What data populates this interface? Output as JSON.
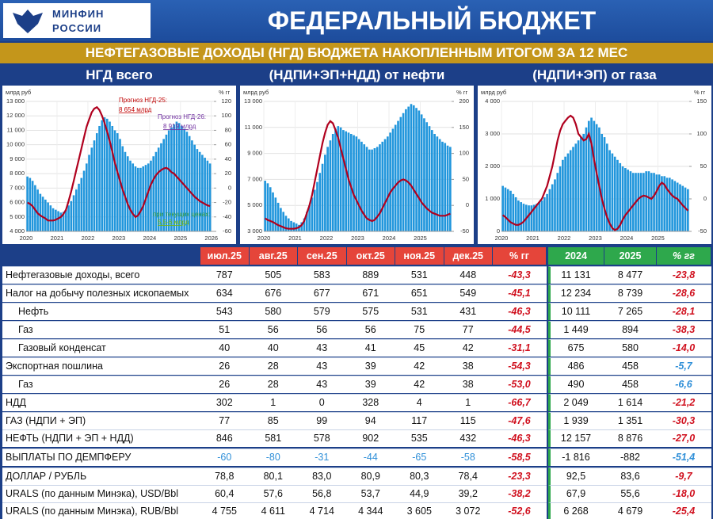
{
  "header": {
    "logo": [
      "МИНФИН",
      "РОССИИ"
    ],
    "title": "ФЕДЕРАЛЬНЫЙ БЮДЖЕТ",
    "subtitle": "НЕФТЕГАЗОВЫЕ ДОХОДЫ (НГД) БЮДЖЕТА НАКОПЛЕННЫМ ИТОГОМ ЗА 12 МЕС"
  },
  "chart_data": [
    {
      "type": "bar_line",
      "title": "НГД всего",
      "y_label": "млрд руб",
      "y2_label": "% гг",
      "categories": [
        "2020",
        null,
        null,
        null,
        null,
        null,
        null,
        null,
        null,
        null,
        null,
        null,
        "2021",
        null,
        null,
        null,
        null,
        null,
        null,
        null,
        null,
        null,
        null,
        null,
        "2022",
        null,
        null,
        null,
        null,
        null,
        null,
        null,
        null,
        null,
        null,
        null,
        "2023",
        null,
        null,
        null,
        null,
        null,
        null,
        null,
        null,
        null,
        null,
        null,
        "2024",
        null,
        null,
        null,
        null,
        null,
        null,
        null,
        null,
        null,
        null,
        null,
        "2025",
        null,
        null,
        null,
        null,
        null,
        null,
        null,
        null,
        null,
        null,
        null,
        "2026"
      ],
      "series": [
        {
          "color": "#2196dc",
          "values": [
            7800,
            7700,
            7500,
            7200,
            6900,
            6600,
            6400,
            6200,
            6000,
            5800,
            5600,
            5500,
            5400,
            5300,
            5350,
            5500,
            5800,
            6100,
            6500,
            6900,
            7300,
            7700,
            8200,
            8700,
            9300,
            9800,
            10300,
            10800,
            11300,
            11700,
            11900,
            11800,
            11600,
            11300,
            11000,
            10800,
            10400,
            9900,
            9500,
            9200,
            8900,
            8700,
            8500,
            8400,
            8400,
            8500,
            8600,
            8700,
            8900,
            9200,
            9500,
            9800,
            10100,
            10400,
            10700,
            11000,
            11200,
            11400,
            11600,
            11500,
            11300,
            11100,
            10900,
            10600,
            10300,
            10000,
            9700,
            9500,
            9300,
            9100,
            8900,
            8700,
            null
          ]
        },
        {
          "color": "#b0001e",
          "axis": "y2",
          "values": [
            -20,
            -22,
            -25,
            -30,
            -35,
            -38,
            -40,
            -42,
            -45,
            -45,
            -45,
            -44,
            -42,
            -40,
            -36,
            -30,
            -18,
            -5,
            10,
            25,
            40,
            55,
            70,
            85,
            95,
            105,
            110,
            112,
            108,
            100,
            90,
            78,
            65,
            50,
            35,
            22,
            10,
            -2,
            -12,
            -22,
            -30,
            -36,
            -40,
            -38,
            -32,
            -25,
            -15,
            -5,
            5,
            12,
            18,
            22,
            25,
            27,
            28,
            26,
            22,
            20,
            16,
            12,
            8,
            4,
            0,
            -4,
            -8,
            -12,
            -15,
            -18,
            -20,
            -22,
            -24,
            -25,
            null
          ]
        }
      ],
      "ylim": [
        4000,
        13000
      ],
      "yticks": [
        {
          "value": 4000,
          "label": "4 000"
        },
        {
          "value": 5000,
          "label": "5 000"
        },
        {
          "value": 6000,
          "label": "6 000"
        },
        {
          "value": 7000,
          "label": "7 000"
        },
        {
          "value": 8000,
          "label": "8 000"
        },
        {
          "value": 9000,
          "label": "9 000"
        },
        {
          "value": 10000,
          "label": "10 000"
        },
        {
          "value": 11000,
          "label": "11 000"
        },
        {
          "value": 12000,
          "label": "12 000"
        },
        {
          "value": 13000,
          "label": "13 000"
        }
      ],
      "y2lim": [
        -60,
        120
      ],
      "y2ticks": [
        -60,
        -40,
        -20,
        0,
        20,
        40,
        60,
        80,
        100,
        120
      ],
      "grid": true,
      "annotations": [
        {
          "text": "Прогноз НГД-25:",
          "color": "#c00000"
        },
        {
          "text": "8 654 млрд",
          "color": "#c00000"
        },
        {
          "text": "Прогноз НГД-26:",
          "color": "#7030a0"
        },
        {
          "text": "8 919 млрд",
          "color": "#7030a0"
        },
        {
          "text": "при текущих ценах:",
          "color": "#2e9a3a"
        },
        {
          "text": "5,5-6 млрд",
          "color": "#7ab800"
        }
      ]
    },
    {
      "type": "bar_line",
      "title": "(НДПИ+ЭП+НДД) от нефти",
      "y_label": "млрд руб",
      "y2_label": "% гг",
      "categories": [
        "2020",
        null,
        null,
        null,
        null,
        null,
        null,
        null,
        null,
        null,
        null,
        null,
        "2021",
        null,
        null,
        null,
        null,
        null,
        null,
        null,
        null,
        null,
        null,
        null,
        "2022",
        null,
        null,
        null,
        null,
        null,
        null,
        null,
        null,
        null,
        null,
        null,
        "2023",
        null,
        null,
        null,
        null,
        null,
        null,
        null,
        null,
        null,
        null,
        null,
        "2024",
        null,
        null,
        null,
        null,
        null,
        null,
        null,
        null,
        null,
        null,
        null,
        "2025",
        null,
        null,
        null,
        null,
        null,
        null,
        null,
        null,
        null,
        null,
        null
      ],
      "series": [
        {
          "color": "#2196dc",
          "values": [
            6900,
            6700,
            6400,
            6000,
            5600,
            5200,
            4800,
            4500,
            4200,
            4000,
            3800,
            3700,
            3600,
            3500,
            3700,
            4000,
            4500,
            5000,
            5600,
            6200,
            6800,
            7500,
            8200,
            8900,
            9500,
            10000,
            10500,
            10900,
            11100,
            11000,
            10800,
            10700,
            10600,
            10500,
            10400,
            10300,
            10100,
            9900,
            9700,
            9500,
            9300,
            9300,
            9400,
            9500,
            9700,
            9900,
            10100,
            10300,
            10600,
            10900,
            11200,
            11500,
            11800,
            12100,
            12400,
            12600,
            12800,
            12700,
            12500,
            12300,
            12000,
            11700,
            11400,
            11100,
            10800,
            10500,
            10300,
            10100,
            9900,
            9800,
            9600,
            9500
          ]
        },
        {
          "color": "#b0001e",
          "axis": "y2",
          "values": [
            -25,
            -28,
            -30,
            -32,
            -35,
            -38,
            -40,
            -42,
            -44,
            -45,
            -45,
            -45,
            -44,
            -42,
            -38,
            -30,
            -15,
            0,
            20,
            45,
            70,
            95,
            120,
            140,
            155,
            162,
            158,
            145,
            130,
            110,
            90,
            70,
            50,
            35,
            20,
            10,
            0,
            -10,
            -18,
            -25,
            -28,
            -30,
            -28,
            -22,
            -15,
            -5,
            5,
            15,
            25,
            32,
            38,
            44,
            48,
            50,
            48,
            44,
            38,
            30,
            22,
            14,
            6,
            0,
            -6,
            -10,
            -14,
            -16,
            -18,
            -20,
            -20,
            -20,
            -18,
            -16
          ]
        }
      ],
      "ylim": [
        3000,
        13000
      ],
      "yticks": [
        {
          "value": 3000,
          "label": "3 000"
        },
        {
          "value": 5000,
          "label": "5 000"
        },
        {
          "value": 7000,
          "label": "7 000"
        },
        {
          "value": 9000,
          "label": "9 000"
        },
        {
          "value": 11000,
          "label": "11 000"
        },
        {
          "value": 13000,
          "label": "13 000"
        }
      ],
      "y2lim": [
        -50,
        200
      ],
      "y2ticks": [
        -50,
        0,
        50,
        100,
        150,
        200
      ],
      "grid": true
    },
    {
      "type": "bar_line",
      "title": "(НДПИ+ЭП) от газа",
      "y_label": "млрд руб",
      "y2_label": "% гг",
      "categories": [
        "2020",
        null,
        null,
        null,
        null,
        null,
        null,
        null,
        null,
        null,
        null,
        null,
        "2021",
        null,
        null,
        null,
        null,
        null,
        null,
        null,
        null,
        null,
        null,
        null,
        "2022",
        null,
        null,
        null,
        null,
        null,
        null,
        null,
        null,
        null,
        null,
        null,
        "2023",
        null,
        null,
        null,
        null,
        null,
        null,
        null,
        null,
        null,
        null,
        null,
        "2024",
        null,
        null,
        null,
        null,
        null,
        null,
        null,
        null,
        null,
        null,
        null,
        "2025",
        null,
        null,
        null,
        null,
        null,
        null,
        null,
        null,
        null,
        null,
        null
      ],
      "series": [
        {
          "color": "#2196dc",
          "values": [
            1400,
            1350,
            1300,
            1250,
            1150,
            1050,
            950,
            900,
            850,
            820,
            800,
            800,
            820,
            850,
            900,
            950,
            1050,
            1150,
            1300,
            1450,
            1600,
            1800,
            2000,
            2200,
            2300,
            2400,
            2500,
            2600,
            2700,
            2800,
            2900,
            3000,
            3200,
            3400,
            3500,
            3400,
            3300,
            3200,
            3000,
            2900,
            2700,
            2500,
            2400,
            2300,
            2200,
            2100,
            2000,
            1950,
            1900,
            1850,
            1800,
            1800,
            1800,
            1800,
            1800,
            1850,
            1850,
            1800,
            1800,
            1750,
            1750,
            1700,
            1700,
            1650,
            1650,
            1600,
            1550,
            1500,
            1450,
            1400,
            1350,
            1300
          ]
        },
        {
          "color": "#b0001e",
          "axis": "y2",
          "values": [
            -25,
            -28,
            -32,
            -36,
            -38,
            -40,
            -40,
            -38,
            -35,
            -30,
            -25,
            -20,
            -15,
            -10,
            -5,
            0,
            10,
            20,
            35,
            50,
            70,
            90,
            105,
            115,
            120,
            125,
            128,
            125,
            115,
            100,
            95,
            90,
            92,
            100,
            85,
            60,
            40,
            20,
            0,
            -15,
            -28,
            -38,
            -45,
            -48,
            -46,
            -40,
            -32,
            -25,
            -20,
            -15,
            -10,
            -5,
            0,
            3,
            5,
            4,
            2,
            0,
            5,
            12,
            20,
            25,
            22,
            15,
            10,
            5,
            2,
            0,
            -5,
            -10,
            -14,
            -18
          ]
        }
      ],
      "ylim": [
        0,
        4000
      ],
      "yticks": [
        0,
        {
          "value": 1000,
          "label": "1 000"
        },
        {
          "value": 2000,
          "label": "2 000"
        },
        {
          "value": 3000,
          "label": "3 000"
        },
        {
          "value": 4000,
          "label": "4 000"
        }
      ],
      "y2lim": [
        -50,
        150
      ],
      "y2ticks": [
        -50,
        0,
        50,
        100,
        150
      ],
      "grid": true
    }
  ],
  "table": {
    "month_columns": [
      "июл.25",
      "авг.25",
      "сен.25",
      "окт.25",
      "ноя.25",
      "дек.25",
      "% гг"
    ],
    "year_columns": [
      "2024",
      "2025",
      "% гг"
    ],
    "rows": [
      {
        "label": "Нефтегазовые доходы, всего",
        "cells": [
          "787",
          "505",
          "583",
          "889",
          "531",
          "448",
          "-43,3",
          "11 131",
          "8 477",
          "-23,8"
        ]
      },
      {
        "label": "Налог на добычу полезных ископаемых",
        "cells": [
          "634",
          "676",
          "677",
          "671",
          "651",
          "549",
          "-45,1",
          "12 234",
          "8 739",
          "-28,6"
        ]
      },
      {
        "label": "Нефть",
        "cells": [
          "543",
          "580",
          "579",
          "575",
          "531",
          "431",
          "-46,3",
          "10 111",
          "7 265",
          "-28,1"
        ]
      },
      {
        "label": "Газ",
        "cells": [
          "51",
          "56",
          "56",
          "56",
          "75",
          "77",
          "-44,5",
          "1 449",
          "894",
          "-38,3"
        ]
      },
      {
        "label": "Газовый конденсат",
        "cells": [
          "40",
          "40",
          "43",
          "41",
          "45",
          "42",
          "-31,1",
          "675",
          "580",
          "-14,0"
        ]
      },
      {
        "label": "Экспортная пошлина",
        "cells": [
          "26",
          "28",
          "43",
          "39",
          "42",
          "38",
          "-54,3",
          "486",
          "458",
          "-5,7"
        ]
      },
      {
        "label": "Газ",
        "cells": [
          "26",
          "28",
          "43",
          "39",
          "42",
          "38",
          "-53,0",
          "490",
          "458",
          "-6,6"
        ]
      },
      {
        "label": "НДД",
        "cells": [
          "302",
          "1",
          "0",
          "328",
          "4",
          "1",
          "-66,7",
          "2 049",
          "1 614",
          "-21,2"
        ]
      },
      {
        "label": "ГАЗ (НДПИ + ЭП)",
        "cells": [
          "77",
          "85",
          "99",
          "94",
          "117",
          "115",
          "-47,6",
          "1 939",
          "1 351",
          "-30,3"
        ]
      },
      {
        "label": "НЕФТЬ (НДПИ + ЭП + НДД)",
        "cells": [
          "846",
          "581",
          "578",
          "902",
          "535",
          "432",
          "-46,3",
          "12 157",
          "8 876",
          "-27,0"
        ]
      },
      {
        "label": "ВЫПЛАТЫ ПО ДЕМПФЕРУ",
        "cells": [
          "-60",
          "-80",
          "-31",
          "-44",
          "-65",
          "-58",
          "-58,5",
          "-1 816",
          "-882",
          "-51,4"
        ]
      },
      {
        "label": "ДОЛЛАР / РУБЛЬ",
        "cells": [
          "78,8",
          "80,1",
          "83,0",
          "80,9",
          "80,3",
          "78,4",
          "-23,3",
          "92,5",
          "83,6",
          "-9,7"
        ]
      },
      {
        "label": "URALS (по данным Минэка), USD/Bbl",
        "cells": [
          "60,4",
          "57,6",
          "56,8",
          "53,7",
          "44,9",
          "39,2",
          "-38,2",
          "67,9",
          "55,6",
          "-18,0"
        ]
      },
      {
        "label": "URALS (по данным Минэка), RUB/Bbl",
        "cells": [
          "4 755",
          "4 611",
          "4 714",
          "4 344",
          "3 605",
          "3 072",
          "-52,6",
          "6 268",
          "4 679",
          "-25,4"
        ]
      }
    ]
  }
}
